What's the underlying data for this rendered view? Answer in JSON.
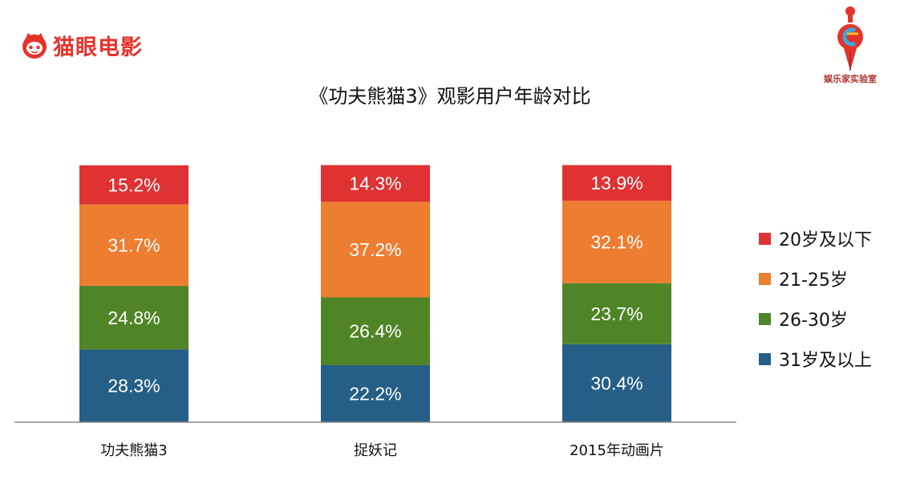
{
  "header": {
    "brand_name": "猫眼电影",
    "brand_color": "#e5332b",
    "brand_icon": "cat-face-icon",
    "partner_name": "娱乐家实验室",
    "partner_icon": "pen-c-logo-icon"
  },
  "chart_data": {
    "type": "bar",
    "stacked": true,
    "title": "《功夫熊猫3》观影用户年龄对比",
    "xlabel": "",
    "ylabel": "",
    "ylim": [
      0,
      100
    ],
    "categories": [
      "功夫熊猫3",
      "捉妖记",
      "2015年动画片"
    ],
    "series": [
      {
        "name": "31岁及以上",
        "color": "#255e87",
        "values": [
          28.3,
          22.2,
          30.4
        ],
        "labels": [
          "28.3%",
          "22.2%",
          "30.4%"
        ]
      },
      {
        "name": "26-30岁",
        "color": "#4f8527",
        "values": [
          24.8,
          26.4,
          23.7
        ],
        "labels": [
          "24.8%",
          "26.4%",
          "23.7%"
        ]
      },
      {
        "name": "21-25岁",
        "color": "#ed7d31",
        "values": [
          31.7,
          37.2,
          32.1
        ],
        "labels": [
          "31.7%",
          "37.2%",
          "32.1%"
        ]
      },
      {
        "name": "20岁及以下",
        "color": "#e03232",
        "values": [
          15.2,
          14.3,
          13.9
        ],
        "labels": [
          "15.2%",
          "14.3%",
          "13.9%"
        ]
      }
    ],
    "legend_order": [
      "20岁及以下",
      "21-25岁",
      "26-30岁",
      "31岁及以上"
    ],
    "legend_position": "right",
    "grid": false
  }
}
